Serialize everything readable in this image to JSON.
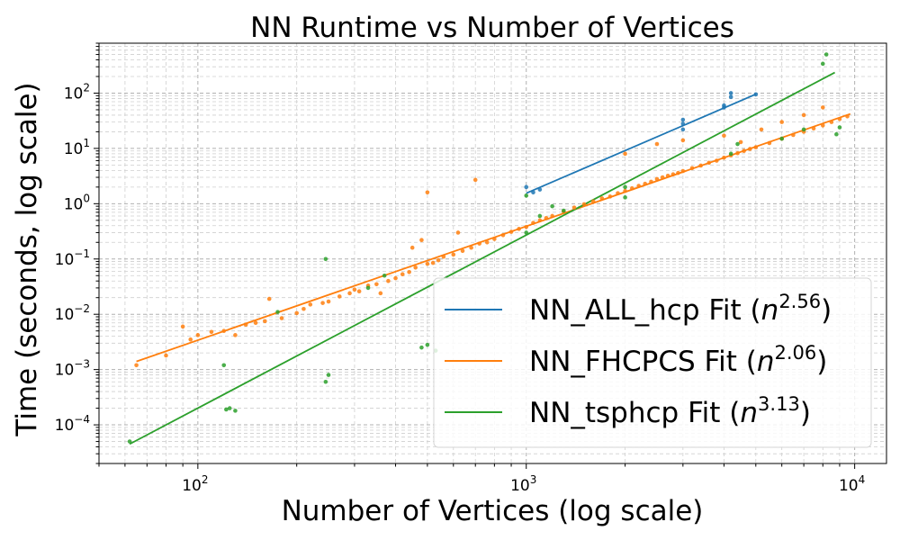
{
  "chart_data": {
    "type": "scatter",
    "title": "NN Runtime vs Number of Vertices",
    "xlabel": "Number of Vertices (log scale)",
    "ylabel": "Time (seconds, log scale)",
    "x_scale": "log",
    "y_scale": "log",
    "xlim": [
      50,
      12500
    ],
    "ylim": [
      2e-05,
      800
    ],
    "x_ticks": [
      {
        "value": 100,
        "base": "10",
        "exp": "2"
      },
      {
        "value": 1000,
        "base": "10",
        "exp": "3"
      },
      {
        "value": 10000,
        "base": "10",
        "exp": "4"
      }
    ],
    "y_ticks": [
      {
        "value": 0.0001,
        "base": "10",
        "exp": "−4"
      },
      {
        "value": 0.001,
        "base": "10",
        "exp": "−3"
      },
      {
        "value": 0.01,
        "base": "10",
        "exp": "−2"
      },
      {
        "value": 0.1,
        "base": "10",
        "exp": "−1"
      },
      {
        "value": 1,
        "base": "10",
        "exp": "0"
      },
      {
        "value": 10,
        "base": "10",
        "exp": "1"
      },
      {
        "value": 100,
        "base": "10",
        "exp": "2"
      }
    ],
    "grid": true,
    "legend_position": "lower-right",
    "series": [
      {
        "name": "NN_ALL_hcp",
        "color": "#1f77b4",
        "points": [
          [
            1000,
            2.0
          ],
          [
            1050,
            1.6
          ],
          [
            1100,
            1.8
          ],
          [
            3000,
            22
          ],
          [
            3000,
            28
          ],
          [
            3000,
            33
          ],
          [
            4000,
            55
          ],
          [
            4000,
            60
          ],
          [
            4200,
            85
          ],
          [
            4200,
            100
          ],
          [
            5000,
            95
          ]
        ]
      },
      {
        "name": "NN_FHCPCS",
        "color": "#ff7f0e",
        "points": [
          [
            65,
            0.0012
          ],
          [
            80,
            0.0018
          ],
          [
            90,
            0.006
          ],
          [
            95,
            0.0035
          ],
          [
            100,
            0.0042
          ],
          [
            110,
            0.0048
          ],
          [
            120,
            0.005
          ],
          [
            130,
            0.0042
          ],
          [
            140,
            0.0065
          ],
          [
            150,
            0.007
          ],
          [
            160,
            0.0075
          ],
          [
            165,
            0.019
          ],
          [
            180,
            0.0085
          ],
          [
            200,
            0.0105
          ],
          [
            210,
            0.0125
          ],
          [
            220,
            0.015
          ],
          [
            240,
            0.016
          ],
          [
            250,
            0.017
          ],
          [
            270,
            0.021
          ],
          [
            290,
            0.024
          ],
          [
            300,
            0.028
          ],
          [
            310,
            0.026
          ],
          [
            330,
            0.033
          ],
          [
            350,
            0.035
          ],
          [
            360,
            0.024
          ],
          [
            380,
            0.04
          ],
          [
            400,
            0.045
          ],
          [
            420,
            0.053
          ],
          [
            440,
            0.058
          ],
          [
            450,
            0.16
          ],
          [
            460,
            0.07
          ],
          [
            480,
            0.22
          ],
          [
            500,
            0.082
          ],
          [
            500,
            1.6
          ],
          [
            520,
            0.085
          ],
          [
            540,
            0.095
          ],
          [
            560,
            0.11
          ],
          [
            600,
            0.12
          ],
          [
            620,
            0.3
          ],
          [
            640,
            0.14
          ],
          [
            680,
            0.16
          ],
          [
            700,
            2.7
          ],
          [
            720,
            0.19
          ],
          [
            760,
            0.2
          ],
          [
            800,
            0.23
          ],
          [
            850,
            0.27
          ],
          [
            900,
            0.31
          ],
          [
            950,
            0.35
          ],
          [
            1000,
            0.38
          ],
          [
            1050,
            0.45
          ],
          [
            1100,
            0.5
          ],
          [
            1150,
            0.55
          ],
          [
            1200,
            0.6
          ],
          [
            1300,
            0.72
          ],
          [
            1400,
            0.85
          ],
          [
            1500,
            0.98
          ],
          [
            1600,
            1.1
          ],
          [
            1700,
            1.25
          ],
          [
            1800,
            1.35
          ],
          [
            1900,
            1.55
          ],
          [
            2000,
            1.7
          ],
          [
            2100,
            1.9
          ],
          [
            2200,
            2.1
          ],
          [
            2300,
            2.3
          ],
          [
            2400,
            2.5
          ],
          [
            2500,
            2.8
          ],
          [
            2600,
            3.0
          ],
          [
            2700,
            3.2
          ],
          [
            2800,
            3.4
          ],
          [
            2900,
            3.6
          ],
          [
            3000,
            3.9
          ],
          [
            3200,
            4.4
          ],
          [
            3400,
            4.9
          ],
          [
            3600,
            5.5
          ],
          [
            3800,
            6.0
          ],
          [
            4000,
            6.8
          ],
          [
            4200,
            7.5
          ],
          [
            4400,
            8.2
          ],
          [
            4600,
            9.0
          ],
          [
            4800,
            9.8
          ],
          [
            5000,
            10.5
          ],
          [
            5500,
            12.5
          ],
          [
            6000,
            15
          ],
          [
            6500,
            17.5
          ],
          [
            7000,
            20
          ],
          [
            7500,
            23
          ],
          [
            8000,
            26
          ],
          [
            8500,
            30
          ],
          [
            9000,
            34
          ],
          [
            9500,
            38
          ],
          [
            2000,
            8
          ],
          [
            2500,
            12
          ],
          [
            3000,
            14
          ],
          [
            4000,
            17
          ],
          [
            4500,
            13
          ],
          [
            5200,
            22
          ],
          [
            6000,
            30
          ],
          [
            7000,
            40
          ],
          [
            8000,
            55
          ]
        ]
      },
      {
        "name": "NN_tsphcp",
        "color": "#2ca02c",
        "points": [
          [
            62,
            5e-05
          ],
          [
            120,
            0.0012
          ],
          [
            122,
            0.00019
          ],
          [
            125,
            0.0002
          ],
          [
            130,
            0.00018
          ],
          [
            175,
            0.011
          ],
          [
            245,
            0.1
          ],
          [
            245,
            0.0006
          ],
          [
            250,
            0.0008
          ],
          [
            330,
            0.03
          ],
          [
            370,
            0.05
          ],
          [
            480,
            0.0025
          ],
          [
            500,
            0.0028
          ],
          [
            530,
            0.0022
          ],
          [
            1000,
            1.4
          ],
          [
            1000,
            0.3
          ],
          [
            1100,
            0.6
          ],
          [
            1200,
            0.9
          ],
          [
            1300,
            0.75
          ],
          [
            2000,
            1.3
          ],
          [
            2000,
            2.0
          ],
          [
            4200,
            8
          ],
          [
            4400,
            12
          ],
          [
            6000,
            15
          ],
          [
            7000,
            22
          ],
          [
            8000,
            340
          ],
          [
            8200,
            500
          ],
          [
            8800,
            18
          ],
          [
            9000,
            24
          ]
        ]
      }
    ],
    "fits": [
      {
        "name": "NN_ALL_hcp",
        "label": "NN_ALL_hcp Fit (",
        "exponent": "2.56",
        "color": "#1f77b4",
        "x_range": [
          1000,
          5000
        ],
        "y_at_start": 1.55,
        "slope": 2.56
      },
      {
        "name": "NN_FHCPCS",
        "label": "NN_FHCPCS Fit (",
        "exponent": "2.06",
        "color": "#ff7f0e",
        "x_range": [
          65,
          9700
        ],
        "y_at_start": 0.0014,
        "slope": 2.06
      },
      {
        "name": "NN_tsphcp",
        "label": "NN_tsphcp Fit (",
        "exponent": "3.13",
        "color": "#2ca02c",
        "x_range": [
          62,
          8700
        ],
        "y_at_start": 4.5e-05,
        "slope": 3.13
      }
    ],
    "legend": {
      "entries": [
        {
          "text": "NN_ALL_hcp Fit (",
          "var": "n",
          "exp": "2.56",
          "close": ")",
          "color": "#1f77b4"
        },
        {
          "text": "NN_FHCPCS Fit (",
          "var": "n",
          "exp": "2.06",
          "close": ")",
          "color": "#ff7f0e"
        },
        {
          "text": "NN_tsphcp Fit (",
          "var": "n",
          "exp": "3.13",
          "close": ")",
          "color": "#2ca02c"
        }
      ]
    }
  }
}
